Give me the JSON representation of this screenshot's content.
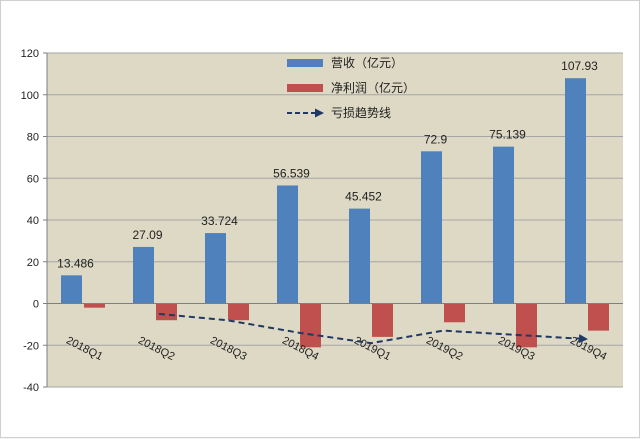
{
  "chart_data": {
    "type": "bar",
    "title": "",
    "xlabel": "",
    "ylabel": "",
    "categories": [
      "2018Q1",
      "2018Q2",
      "2018Q3",
      "2018Q4",
      "2019Q1",
      "2019Q2",
      "2019Q3",
      "2019Q4"
    ],
    "series": [
      {
        "name": "营收（亿元）",
        "color": "#4f81bd",
        "values": [
          13.486,
          27.09,
          33.724,
          56.539,
          45.452,
          72.9,
          75.139,
          107.93
        ],
        "labels": [
          "13.486",
          "27.09",
          "33.724",
          "56.539",
          "45.452",
          "72.9",
          "75.139",
          "107.93"
        ]
      },
      {
        "name": "净利润（亿元）",
        "color": "#c0504d",
        "values": [
          -2,
          -8,
          -8,
          -21,
          -16,
          -9,
          -21,
          -13
        ]
      }
    ],
    "trend_line": {
      "name": "亏损趋势线",
      "color": "#1f3864",
      "style": "dashed-arrow",
      "points": [
        {
          "category": "2018Q2",
          "value": -5
        },
        {
          "category": "2018Q3",
          "value": -8
        },
        {
          "category": "2018Q4",
          "value": -14
        },
        {
          "category": "2019Q1",
          "value": -19
        },
        {
          "category": "2019Q2",
          "value": -13
        },
        {
          "category": "2019Q3",
          "value": -15
        },
        {
          "category": "2019Q4",
          "value": -17
        }
      ]
    },
    "ylim": [
      -40,
      120
    ],
    "yticks": [
      "-40",
      "-20",
      "0",
      "20",
      "40",
      "60",
      "80",
      "100",
      "120"
    ],
    "grid": true,
    "legend": "top-center",
    "plot_background": "#ddd9c4"
  }
}
